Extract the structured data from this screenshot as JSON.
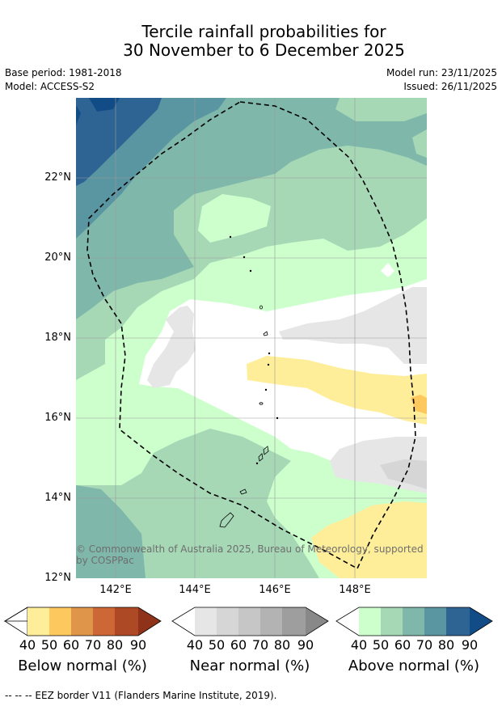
{
  "title": {
    "line1": "Tercile rainfall probabilities for",
    "line2": "30 November to 6 December 2025"
  },
  "meta": {
    "base_period": "Base period: 1981-2018",
    "model": "Model: ACCESS-S2",
    "model_run": "Model run: 23/11/2025",
    "issued": "Issued: 26/11/2025"
  },
  "map": {
    "lat_ticks": [
      "22°N",
      "20°N",
      "18°N",
      "16°N",
      "14°N",
      "12°N"
    ],
    "lon_ticks": [
      "142°E",
      "144°E",
      "146°E",
      "148°E"
    ],
    "copyright": "© Commonwealth of Australia 2025, Bureau of Meteorology, supported by COSPPac"
  },
  "colorbars": [
    {
      "label": "Below normal (%)",
      "ticks": [
        "40",
        "50",
        "60",
        "70",
        "80",
        "90"
      ],
      "colors": [
        "#ffee99",
        "#fdc95e",
        "#e0964a",
        "#cd6735",
        "#ad4a25",
        "#8e3319"
      ]
    },
    {
      "label": "Near normal (%)",
      "ticks": [
        "40",
        "50",
        "60",
        "70",
        "80",
        "90"
      ],
      "colors": [
        "#e6e6e6",
        "#d6d6d6",
        "#c6c6c6",
        "#b3b3b3",
        "#9e9e9e",
        "#888888"
      ]
    },
    {
      "label": "Above normal (%)",
      "ticks": [
        "40",
        "50",
        "60",
        "70",
        "80",
        "90"
      ],
      "colors": [
        "#ccffcc",
        "#a6d8b6",
        "#7fb8ab",
        "#5a95a2",
        "#2e6494",
        "#124c86"
      ]
    }
  ],
  "footnote": "--  --  -- EEZ border V11 (Flanders Marine Institute, 2019)."
}
